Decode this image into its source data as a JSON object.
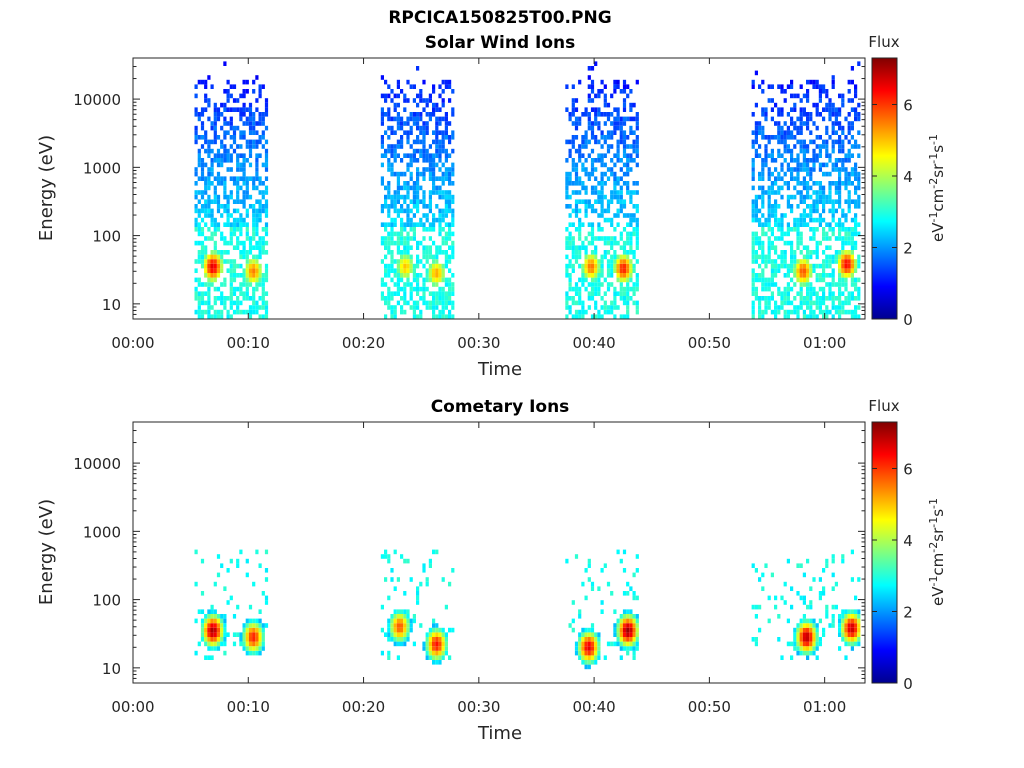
{
  "figure": {
    "title": "RPCICA150825T00.PNG"
  },
  "chart_data": [
    {
      "type": "heatmap",
      "title": "Solar Wind Ions",
      "xlabel": "Time",
      "ylabel": "Energy (eV)",
      "y_scale": "log",
      "xlim_minutes": [
        0,
        63.5
      ],
      "ylim": [
        6,
        40000
      ],
      "x_ticks": [
        "00:00",
        "00:10",
        "00:20",
        "00:30",
        "00:40",
        "00:50",
        "01:00"
      ],
      "y_ticks": [
        "10",
        "100",
        "1000",
        "10000"
      ],
      "colorbar": {
        "title": "Flux",
        "label": "eV-1cm-2sr-1s-1",
        "range": [
          0,
          7.3
        ],
        "ticks": [
          "0",
          "2",
          "4",
          "6"
        ]
      },
      "bursts": [
        {
          "start": "00:05:20",
          "end": "00:11:40",
          "peaks": [
            {
              "t": 6.8,
              "e": 35,
              "v": 6.6
            },
            {
              "t": 10.3,
              "e": 30,
              "v": 5.5
            }
          ]
        },
        {
          "start": "00:21:30",
          "end": "00:27:50",
          "peaks": [
            {
              "t": 23.5,
              "e": 35,
              "v": 5.0
            },
            {
              "t": 26.2,
              "e": 28,
              "v": 5.2
            }
          ]
        },
        {
          "start": "00:37:30",
          "end": "00:43:50",
          "peaks": [
            {
              "t": 39.6,
              "e": 35,
              "v": 5.6
            },
            {
              "t": 42.4,
              "e": 33,
              "v": 6.2
            }
          ]
        },
        {
          "start": "00:53:40",
          "end": "01:03:00",
          "peaks": [
            {
              "t": 58.0,
              "e": 30,
              "v": 5.8
            },
            {
              "t": 61.8,
              "e": 38,
              "v": 6.4
            }
          ]
        }
      ]
    },
    {
      "type": "heatmap",
      "title": "Cometary Ions",
      "xlabel": "Time",
      "ylabel": "Energy (eV)",
      "y_scale": "log",
      "xlim_minutes": [
        0,
        63.5
      ],
      "ylim": [
        6,
        40000
      ],
      "x_ticks": [
        "00:00",
        "00:10",
        "00:20",
        "00:30",
        "00:40",
        "00:50",
        "01:00"
      ],
      "y_ticks": [
        "10",
        "100",
        "1000",
        "10000"
      ],
      "colorbar": {
        "title": "Flux",
        "label": "eV-1cm-2sr-1s-1",
        "range": [
          0,
          7.3
        ],
        "ticks": [
          "0",
          "2",
          "4",
          "6"
        ]
      },
      "bursts": [
        {
          "start": "00:05:20",
          "end": "00:11:40",
          "peaks": [
            {
              "t": 6.8,
              "e": 35,
              "v": 7.0
            },
            {
              "t": 10.3,
              "e": 28,
              "v": 6.2
            }
          ]
        },
        {
          "start": "00:21:30",
          "end": "00:27:50",
          "peaks": [
            {
              "t": 23.0,
              "e": 40,
              "v": 5.8
            },
            {
              "t": 26.2,
              "e": 22,
              "v": 6.3
            }
          ]
        },
        {
          "start": "00:37:30",
          "end": "00:43:50",
          "peaks": [
            {
              "t": 39.4,
              "e": 20,
              "v": 6.6
            },
            {
              "t": 42.8,
              "e": 35,
              "v": 7.1
            }
          ]
        },
        {
          "start": "00:53:40",
          "end": "01:03:00",
          "peaks": [
            {
              "t": 58.3,
              "e": 28,
              "v": 6.9
            },
            {
              "t": 62.2,
              "e": 38,
              "v": 6.8
            }
          ]
        }
      ]
    }
  ]
}
